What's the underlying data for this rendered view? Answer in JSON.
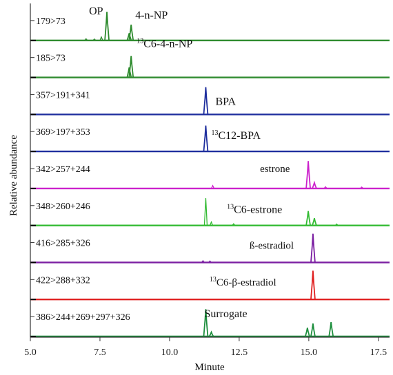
{
  "chart_data": {
    "type": "line",
    "xlabel": "Minute",
    "ylabel": "Relative abundance",
    "xlim": [
      5.0,
      17.9
    ],
    "xticks": [
      "5.0",
      "7.5",
      "10.0",
      "12.5",
      "15.0",
      "17.5"
    ],
    "xtick_values": [
      5.0,
      7.5,
      10.0,
      12.5,
      15.0,
      17.5
    ],
    "panels": [
      {
        "transition": "179>73",
        "color": "#2e8b2e",
        "compounds": [
          {
            "name": "OP",
            "sup": "",
            "peaks": [
              {
                "x": 7.75,
                "h": 1.0
              }
            ]
          },
          {
            "name": "4-n-NP",
            "sup": "",
            "peaks": [
              {
                "x": 8.62,
                "h": 0.55
              },
              {
                "x": 8.55,
                "h": 0.25
              }
            ]
          }
        ],
        "baseline_noise": [
          {
            "x": 7.0,
            "h": 0.06
          },
          {
            "x": 7.3,
            "h": 0.05
          },
          {
            "x": 7.55,
            "h": 0.12
          }
        ]
      },
      {
        "transition": "185>73",
        "color": "#2e8b2e",
        "compounds": [
          {
            "name": "C6-4-n-NP",
            "sup": "13",
            "peaks": [
              {
                "x": 8.62,
                "h": 0.75
              },
              {
                "x": 8.55,
                "h": 0.35
              }
            ]
          }
        ],
        "baseline_noise": []
      },
      {
        "transition": "357>191+341",
        "color": "#1f2f9e",
        "compounds": [
          {
            "name": "BPA",
            "sup": "",
            "peaks": [
              {
                "x": 11.3,
                "h": 0.95
              }
            ]
          }
        ],
        "baseline_noise": []
      },
      {
        "transition": "369>197+353",
        "color": "#1f2f9e",
        "compounds": [
          {
            "name": "C12-BPA",
            "sup": "13",
            "peaks": [
              {
                "x": 11.3,
                "h": 0.9
              }
            ]
          }
        ],
        "baseline_noise": []
      },
      {
        "transition": "342>257+244",
        "color": "#cc22cc",
        "compounds": [
          {
            "name": "estrone",
            "sup": "",
            "peaks": [
              {
                "x": 14.98,
                "h": 0.95
              },
              {
                "x": 15.2,
                "h": 0.2
              }
            ]
          }
        ],
        "baseline_noise": [
          {
            "x": 11.55,
            "h": 0.1
          },
          {
            "x": 15.6,
            "h": 0.06
          },
          {
            "x": 16.9,
            "h": 0.05
          }
        ]
      },
      {
        "transition": "348>260+246",
        "color": "#33bb33",
        "compounds": [
          {
            "name": "C6-estrone",
            "sup": "13",
            "peaks": [
              {
                "x": 14.98,
                "h": 0.5
              },
              {
                "x": 15.2,
                "h": 0.25
              }
            ]
          }
        ],
        "baseline_noise": [
          {
            "x": 11.3,
            "h": 0.95
          },
          {
            "x": 11.5,
            "h": 0.12
          },
          {
            "x": 12.3,
            "h": 0.06
          },
          {
            "x": 16.0,
            "h": 0.05
          }
        ]
      },
      {
        "transition": "416>285+326",
        "color": "#7b1fa2",
        "compounds": [
          {
            "name": "ß-estradiol",
            "sup": "",
            "peaks": [
              {
                "x": 15.15,
                "h": 1.0
              }
            ]
          }
        ],
        "baseline_noise": [
          {
            "x": 11.2,
            "h": 0.06
          },
          {
            "x": 11.45,
            "h": 0.05
          }
        ]
      },
      {
        "transition": "422>288+332",
        "color": "#e02020",
        "compounds": [
          {
            "name": "C6-β-estradiol",
            "sup": "13",
            "peaks": [
              {
                "x": 15.15,
                "h": 1.0
              }
            ]
          }
        ],
        "baseline_noise": []
      },
      {
        "transition": "386>244+269+297+326",
        "color": "#1e8f3e",
        "compounds": [
          {
            "name": "Surrogate",
            "sup": "",
            "peaks": [
              {
                "x": 11.3,
                "h": 0.95
              },
              {
                "x": 11.5,
                "h": 0.15
              },
              {
                "x": 14.95,
                "h": 0.3
              },
              {
                "x": 15.15,
                "h": 0.45
              },
              {
                "x": 15.8,
                "h": 0.5
              }
            ]
          }
        ],
        "baseline_noise": []
      }
    ]
  }
}
